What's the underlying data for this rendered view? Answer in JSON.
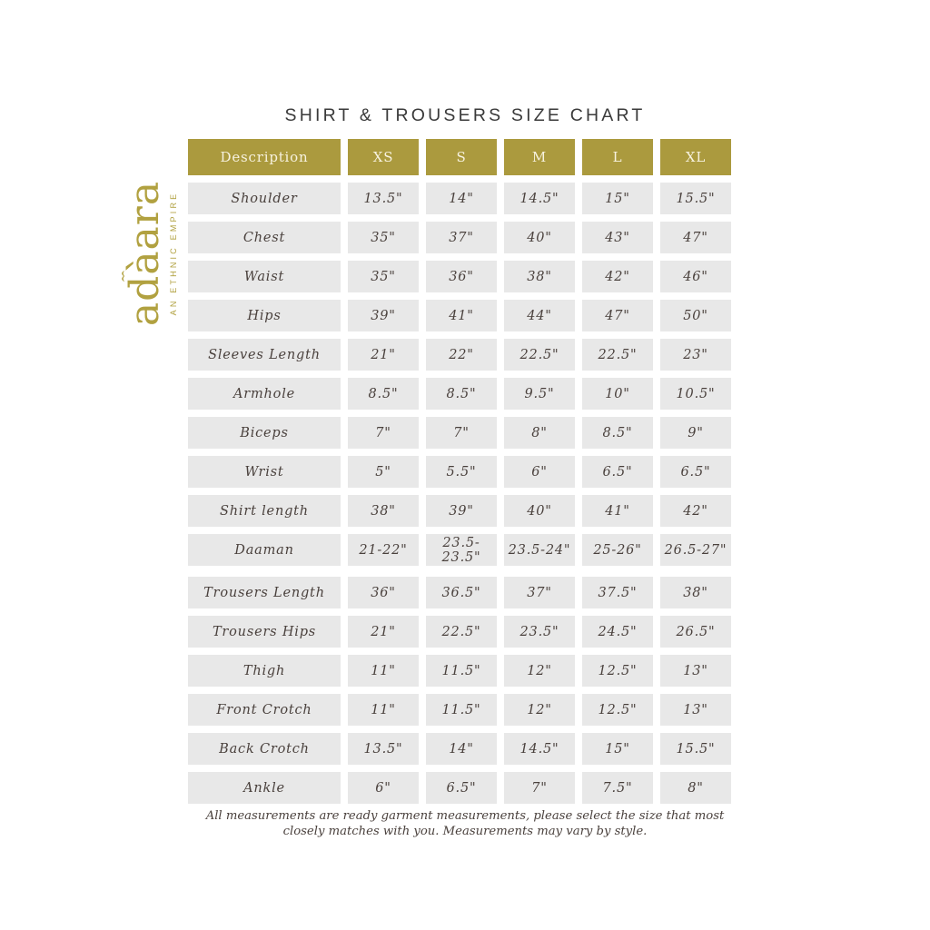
{
  "title": "SHIRT & TROUSERS SIZE CHART",
  "brand": {
    "name": "adàara",
    "tagline": "AN ETHNIC EMPIRE"
  },
  "chart_data": {
    "type": "table",
    "columns": [
      "Description",
      "XS",
      "S",
      "M",
      "L",
      "XL"
    ],
    "rows": [
      {
        "label": "Shoulder",
        "values": [
          "13.5\"",
          "14\"",
          "14.5\"",
          "15\"",
          "15.5\""
        ]
      },
      {
        "label": "Chest",
        "values": [
          "35\"",
          "37\"",
          "40\"",
          "43\"",
          "47\""
        ]
      },
      {
        "label": "Waist",
        "values": [
          "35\"",
          "36\"",
          "38\"",
          "42\"",
          "46\""
        ]
      },
      {
        "label": "Hips",
        "values": [
          "39\"",
          "41\"",
          "44\"",
          "47\"",
          "50\""
        ]
      },
      {
        "label": "Sleeves Length",
        "values": [
          "21\"",
          "22\"",
          "22.5\"",
          "22.5\"",
          "23\""
        ]
      },
      {
        "label": "Armhole",
        "values": [
          "8.5\"",
          "8.5\"",
          "9.5\"",
          "10\"",
          "10.5\""
        ]
      },
      {
        "label": "Biceps",
        "values": [
          "7\"",
          "7\"",
          "8\"",
          "8.5\"",
          "9\""
        ]
      },
      {
        "label": "Wrist",
        "values": [
          "5\"",
          "5.5\"",
          "6\"",
          "6.5\"",
          "6.5\""
        ]
      },
      {
        "label": "Shirt length",
        "values": [
          "38\"",
          "39\"",
          "40\"",
          "41\"",
          "42\""
        ]
      },
      {
        "label": "Daaman",
        "values": [
          "21-22\"",
          "23.5-23.5\"",
          "23.5-24\"",
          "25-26\"",
          "26.5-27\""
        ]
      },
      {
        "label": "Trousers Length",
        "values": [
          "36\"",
          "36.5\"",
          "37\"",
          "37.5\"",
          "38\""
        ],
        "section_start": true
      },
      {
        "label": "Trousers Hips",
        "values": [
          "21\"",
          "22.5\"",
          "23.5\"",
          "24.5\"",
          "26.5\""
        ]
      },
      {
        "label": "Thigh",
        "values": [
          "11\"",
          "11.5\"",
          "12\"",
          "12.5\"",
          "13\""
        ]
      },
      {
        "label": "Front Crotch",
        "values": [
          "11\"",
          "11.5\"",
          "12\"",
          "12.5\"",
          "13\""
        ]
      },
      {
        "label": "Back Crotch",
        "values": [
          "13.5\"",
          "14\"",
          "14.5\"",
          "15\"",
          "15.5\""
        ]
      },
      {
        "label": "Ankle",
        "values": [
          "6\"",
          "6.5\"",
          "7\"",
          "7.5\"",
          "8\""
        ]
      }
    ]
  },
  "footer": {
    "note": "All measurements are ready garment measurements, please select the size that most closely matches with you. Measurements may vary by style."
  },
  "colors": {
    "gold": "#ab9a3e",
    "logo_gold": "#b1a140",
    "cell_bg": "#e8e8e8",
    "cell_text": "#4a413d",
    "title_text": "#3a3a3a",
    "header_text": "#f7f2df"
  }
}
